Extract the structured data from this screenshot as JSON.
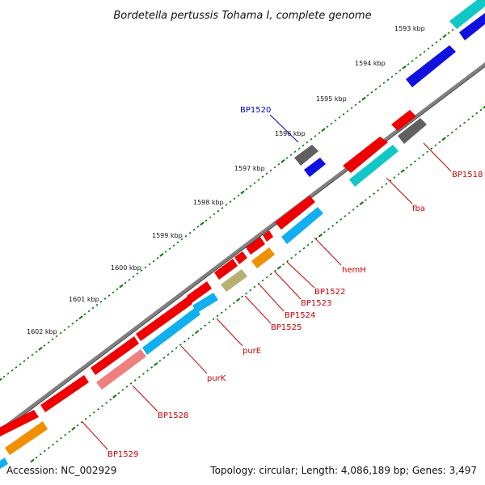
{
  "title": "Bordetella pertussis Tohama I, complete genome",
  "footer": {
    "accession": "Accession: NC_002929",
    "summary": "Topology: circular; Length: 4,086,189 bp; Genes: 3,497"
  },
  "ticks": [
    {
      "label": "1593 kbp",
      "value_kbp": 1593
    },
    {
      "label": "1594 kbp",
      "value_kbp": 1594
    },
    {
      "label": "1595 kbp",
      "value_kbp": 1595
    },
    {
      "label": "1596 kbp",
      "value_kbp": 1596
    },
    {
      "label": "1597 kbp",
      "value_kbp": 1597
    },
    {
      "label": "1598 kbp",
      "value_kbp": 1598
    },
    {
      "label": "1599 kbp",
      "value_kbp": 1599
    },
    {
      "label": "1600 kbp",
      "value_kbp": 1600
    },
    {
      "label": "1601 kbp",
      "value_kbp": 1601
    },
    {
      "label": "1602 kbp",
      "value_kbp": 1602
    }
  ],
  "gene_labels": [
    {
      "text": "BP1518",
      "color": "#cc0000"
    },
    {
      "text": "fba",
      "color": "#cc0000"
    },
    {
      "text": "BP1520",
      "color": "#0000cc"
    },
    {
      "text": "hemH",
      "color": "#cc0000"
    },
    {
      "text": "BP1522",
      "color": "#cc0000"
    },
    {
      "text": "BP1523",
      "color": "#cc0000"
    },
    {
      "text": "BP1524",
      "color": "#cc0000"
    },
    {
      "text": "BP1525",
      "color": "#cc0000"
    },
    {
      "text": "purE",
      "color": "#cc0000"
    },
    {
      "text": "purK",
      "color": "#cc0000"
    },
    {
      "text": "BP1528",
      "color": "#cc0000"
    },
    {
      "text": "BP1529",
      "color": "#cc0000"
    }
  ],
  "colors": {
    "gene_red": "#ee0000",
    "cog_blue": "#1010e0",
    "cog_cyan": "#10c8c8",
    "cog_skyblue": "#10b0f0",
    "cog_gray": "#606060",
    "cog_orange": "#f09000",
    "cog_olive": "#b8b070",
    "cog_pink": "#f08080",
    "tick_green": "#007700",
    "backbone": "#808080"
  }
}
